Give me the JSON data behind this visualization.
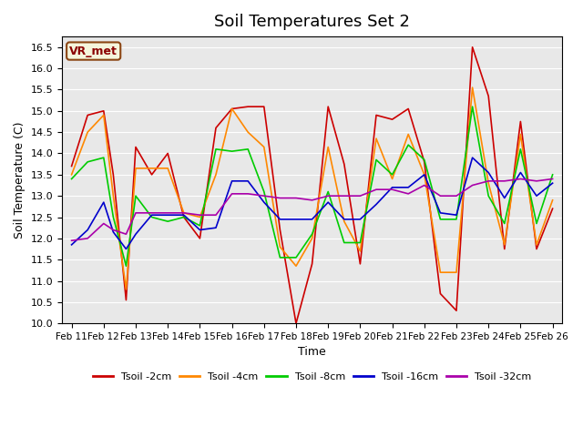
{
  "title": "Soil Temperatures Set 2",
  "xlabel": "Time",
  "ylabel": "Soil Temperature (C)",
  "ylim": [
    10.0,
    16.75
  ],
  "yticks": [
    10.0,
    10.5,
    11.0,
    11.5,
    12.0,
    12.5,
    13.0,
    13.5,
    14.0,
    14.5,
    15.0,
    15.5,
    16.0,
    16.5
  ],
  "x_labels": [
    "Feb 11",
    "Feb 12",
    "Feb 13",
    "Feb 14",
    "Feb 15",
    "Feb 16",
    "Feb 17",
    "Feb 18",
    "Feb 19",
    "Feb 20",
    "Feb 21",
    "Feb 22",
    "Feb 23",
    "Feb 24",
    "Feb 25",
    "Feb 26"
  ],
  "watermark": "VR_met",
  "n_ticks": 16,
  "series": {
    "Tsoil -2cm": {
      "color": "#cc0000",
      "x": [
        0,
        0.5,
        1.0,
        1.3,
        1.7,
        2.0,
        2.5,
        3.0,
        3.5,
        4.0,
        4.5,
        5.0,
        5.5,
        6.0,
        6.5,
        7.0,
        7.5,
        8.0,
        8.5,
        9.0,
        9.5,
        10.0,
        10.5,
        11.0,
        11.5,
        12.0,
        12.5,
        13.0,
        13.5,
        14.0,
        14.5,
        15.0
      ],
      "y": [
        13.7,
        14.9,
        15.0,
        13.5,
        10.55,
        14.15,
        13.5,
        14.0,
        12.5,
        12.0,
        14.6,
        15.05,
        15.1,
        15.1,
        12.2,
        10.0,
        11.4,
        15.1,
        13.75,
        11.4,
        14.9,
        14.8,
        15.05,
        13.8,
        10.7,
        10.3,
        16.5,
        15.35,
        11.75,
        14.75,
        11.75,
        12.7
      ]
    },
    "Tsoil -4cm": {
      "color": "#ff8800",
      "x": [
        0,
        0.5,
        1.0,
        1.3,
        1.7,
        2.0,
        2.5,
        3.0,
        3.5,
        4.0,
        4.5,
        5.0,
        5.5,
        6.0,
        6.5,
        7.0,
        7.5,
        8.0,
        8.5,
        9.0,
        9.5,
        10.0,
        10.5,
        11.0,
        11.5,
        12.0,
        12.5,
        13.0,
        13.5,
        14.0,
        14.5,
        15.0
      ],
      "y": [
        13.5,
        14.5,
        14.9,
        13.0,
        10.8,
        13.65,
        13.65,
        13.65,
        12.6,
        12.5,
        13.5,
        15.05,
        14.5,
        14.15,
        11.8,
        11.35,
        12.0,
        14.15,
        12.4,
        11.7,
        14.35,
        13.4,
        14.45,
        13.5,
        11.2,
        11.2,
        15.55,
        13.3,
        11.85,
        14.45,
        11.85,
        12.9
      ]
    },
    "Tsoil -8cm": {
      "color": "#00cc00",
      "x": [
        0,
        0.5,
        1.0,
        1.3,
        1.7,
        2.0,
        2.5,
        3.0,
        3.5,
        4.0,
        4.5,
        5.0,
        5.5,
        6.0,
        6.5,
        7.0,
        7.5,
        8.0,
        8.5,
        9.0,
        9.5,
        10.0,
        10.5,
        11.0,
        11.5,
        12.0,
        12.5,
        13.0,
        13.5,
        14.0,
        14.5,
        15.0
      ],
      "y": [
        13.4,
        13.8,
        13.9,
        12.5,
        11.35,
        13.0,
        12.5,
        12.4,
        12.5,
        12.3,
        14.1,
        14.05,
        14.1,
        13.1,
        11.55,
        11.55,
        12.1,
        13.1,
        11.9,
        11.9,
        13.85,
        13.5,
        14.2,
        13.85,
        12.45,
        12.45,
        15.1,
        13.0,
        12.35,
        14.1,
        12.35,
        13.5
      ]
    },
    "Tsoil -16cm": {
      "color": "#0000cc",
      "x": [
        0,
        0.5,
        1.0,
        1.3,
        1.7,
        2.0,
        2.5,
        3.0,
        3.5,
        4.0,
        4.5,
        5.0,
        5.5,
        6.0,
        6.5,
        7.0,
        7.5,
        8.0,
        8.5,
        9.0,
        9.5,
        10.0,
        10.5,
        11.0,
        11.5,
        12.0,
        12.5,
        13.0,
        13.5,
        14.0,
        14.5,
        15.0
      ],
      "y": [
        11.85,
        12.2,
        12.85,
        12.15,
        11.75,
        12.1,
        12.55,
        12.55,
        12.55,
        12.2,
        12.25,
        13.35,
        13.35,
        12.85,
        12.45,
        12.45,
        12.45,
        12.85,
        12.45,
        12.45,
        12.8,
        13.2,
        13.2,
        13.5,
        12.6,
        12.55,
        13.9,
        13.55,
        12.95,
        13.55,
        13.0,
        13.3
      ]
    },
    "Tsoil -32cm": {
      "color": "#aa00aa",
      "x": [
        0,
        0.5,
        1.0,
        1.3,
        1.7,
        2.0,
        2.5,
        3.0,
        3.5,
        4.0,
        4.5,
        5.0,
        5.5,
        6.0,
        6.5,
        7.0,
        7.5,
        8.0,
        8.5,
        9.0,
        9.5,
        10.0,
        10.5,
        11.0,
        11.5,
        12.0,
        12.5,
        13.0,
        13.5,
        14.0,
        14.5,
        15.0
      ],
      "y": [
        11.95,
        12.0,
        12.35,
        12.2,
        12.1,
        12.6,
        12.6,
        12.6,
        12.6,
        12.55,
        12.55,
        13.05,
        13.05,
        13.0,
        12.95,
        12.95,
        12.9,
        13.0,
        13.0,
        13.0,
        13.15,
        13.15,
        13.05,
        13.25,
        13.0,
        13.0,
        13.25,
        13.35,
        13.35,
        13.4,
        13.35,
        13.4
      ]
    }
  }
}
